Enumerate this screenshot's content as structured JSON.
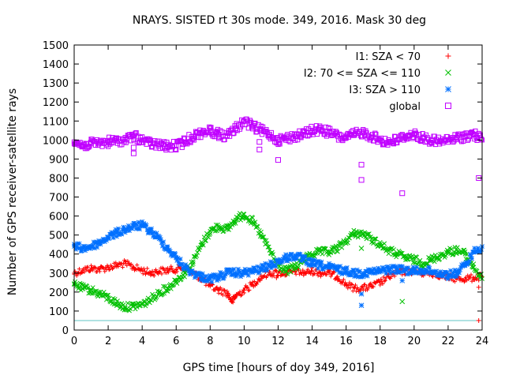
{
  "chart_data": {
    "type": "scatter",
    "title": "NRAYS. SISTED rt 30s mode. 349, 2016. Mask 30 deg",
    "xlabel": "GPS time [hours of doy 349, 2016]",
    "ylabel": "Number of GPS receiver-satellite rays",
    "xlim": [
      0,
      24
    ],
    "ylim": [
      0,
      1500
    ],
    "x_ticks": [
      0,
      2,
      4,
      6,
      8,
      10,
      12,
      14,
      16,
      18,
      20,
      22,
      24
    ],
    "y_ticks": [
      0,
      100,
      200,
      300,
      400,
      500,
      600,
      700,
      800,
      900,
      1000,
      1100,
      1200,
      1300,
      1400,
      1500
    ],
    "reference_line": {
      "y": 50,
      "color": "#5fc4c4"
    },
    "legend_position": "top-right",
    "series": [
      {
        "name": "I1: SZA < 70",
        "marker": "+",
        "color": "#ff0000",
        "x": [
          0,
          0.5,
          1,
          1.5,
          2,
          2.5,
          3,
          3.5,
          4,
          4.5,
          5,
          5.5,
          6,
          6.5,
          7,
          7.5,
          8,
          8.5,
          9,
          9.3,
          9.5,
          10,
          10.5,
          11,
          11.5,
          12,
          12.5,
          13,
          13.5,
          14,
          14.5,
          15,
          15.5,
          16,
          16.5,
          17,
          17.5,
          18,
          18.5,
          19,
          19.5,
          20,
          20.5,
          21,
          21.5,
          22,
          22.5,
          23,
          23.5,
          24
        ],
        "y": [
          300,
          315,
          325,
          320,
          330,
          340,
          350,
          330,
          315,
          300,
          310,
          315,
          320,
          330,
          300,
          270,
          230,
          210,
          195,
          150,
          180,
          210,
          240,
          280,
          300,
          300,
          300,
          310,
          300,
          310,
          300,
          300,
          280,
          240,
          220,
          220,
          230,
          250,
          280,
          300,
          310,
          310,
          300,
          300,
          290,
          280,
          270,
          270,
          275,
          280
        ]
      },
      {
        "name": "I2: 70 <= SZA <= 110",
        "marker": "x",
        "color": "#00c000",
        "x": [
          0,
          0.5,
          1,
          1.5,
          2,
          2.5,
          3,
          3.5,
          4,
          4.5,
          5,
          5.5,
          6,
          6.5,
          7,
          7.5,
          8,
          8.5,
          9,
          9.5,
          10,
          10.5,
          11,
          11.5,
          12,
          12.5,
          13,
          13.5,
          14,
          14.5,
          15,
          15.5,
          16,
          16.5,
          17,
          17.5,
          18,
          18.5,
          19,
          19.5,
          20,
          20.5,
          21,
          21.5,
          22,
          22.5,
          23,
          23.5,
          24
        ],
        "y": [
          240,
          220,
          210,
          190,
          170,
          140,
          120,
          125,
          135,
          160,
          200,
          220,
          260,
          300,
          360,
          450,
          520,
          545,
          530,
          580,
          610,
          570,
          500,
          420,
          340,
          310,
          330,
          370,
          400,
          410,
          410,
          430,
          470,
          510,
          505,
          480,
          450,
          420,
          400,
          380,
          370,
          350,
          370,
          390,
          410,
          420,
          400,
          330,
          270
        ]
      },
      {
        "name": "I3: SZA > 110",
        "marker": "*",
        "color": "#0070ff",
        "x": [
          0,
          0.5,
          1,
          1.5,
          2,
          2.5,
          3,
          3.5,
          4,
          4.5,
          5,
          5.5,
          6,
          6.5,
          7,
          7.5,
          8,
          8.5,
          9,
          9.5,
          10,
          10.5,
          11,
          11.5,
          12,
          12.5,
          13,
          13.5,
          14,
          14.5,
          15,
          15.5,
          16,
          16.5,
          17,
          17.5,
          18,
          18.5,
          19,
          19.5,
          20,
          20.5,
          21,
          21.5,
          22,
          22.5,
          23,
          23.5,
          24
        ],
        "y": [
          440,
          430,
          440,
          460,
          490,
          510,
          530,
          545,
          550,
          520,
          480,
          430,
          380,
          330,
          300,
          280,
          270,
          280,
          300,
          300,
          300,
          310,
          320,
          340,
          360,
          380,
          390,
          370,
          350,
          340,
          330,
          320,
          310,
          300,
          300,
          305,
          310,
          320,
          320,
          315,
          310,
          315,
          310,
          300,
          290,
          300,
          340,
          410,
          440
        ]
      },
      {
        "name": "global",
        "marker": "square",
        "color": "#c000ff",
        "x": [
          0,
          0.5,
          1,
          1.5,
          2,
          2.5,
          3,
          3.5,
          4,
          4.5,
          5,
          5.5,
          6,
          6.5,
          7,
          7.5,
          8,
          8.5,
          9,
          9.5,
          10,
          10.5,
          11,
          11.5,
          12,
          12.5,
          13,
          13.5,
          14,
          14.5,
          15,
          15.5,
          16,
          16.5,
          17,
          17.5,
          18,
          18.5,
          19,
          19.5,
          20,
          20.5,
          21,
          21.5,
          22,
          22.5,
          23,
          23.5,
          24
        ],
        "y": [
          990,
          970,
          980,
          985,
          990,
          995,
          1000,
          1020,
          1000,
          980,
          975,
          965,
          970,
          990,
          1020,
          1040,
          1050,
          1030,
          1020,
          1060,
          1100,
          1070,
          1050,
          1030,
          1000,
          1010,
          1020,
          1030,
          1050,
          1055,
          1040,
          1020,
          1010,
          1030,
          1040,
          1020,
          1000,
          990,
          1000,
          1020,
          1030,
          1010,
          1000,
          990,
          1000,
          1010,
          1020,
          1030,
          1000
        ]
      }
    ],
    "outliers": [
      {
        "series": "global",
        "x": 16.9,
        "y": 870
      },
      {
        "series": "global",
        "x": 16.9,
        "y": 790
      },
      {
        "series": "global",
        "x": 19.3,
        "y": 720
      },
      {
        "series": "global",
        "x": 23.8,
        "y": 800
      },
      {
        "series": "global",
        "x": 12.0,
        "y": 895
      },
      {
        "series": "global",
        "x": 3.5,
        "y": 930
      },
      {
        "series": "global",
        "x": 3.5,
        "y": 960
      },
      {
        "series": "global",
        "x": 10.9,
        "y": 950
      },
      {
        "series": "global",
        "x": 10.9,
        "y": 990
      },
      {
        "series": "I2: 70 <= SZA <= 110",
        "x": 19.3,
        "y": 150
      },
      {
        "series": "I2: 70 <= SZA <= 110",
        "x": 16.9,
        "y": 430
      },
      {
        "series": "I3: SZA > 110",
        "x": 16.9,
        "y": 130
      },
      {
        "series": "I3: SZA > 110",
        "x": 16.9,
        "y": 190
      },
      {
        "series": "I3: SZA > 110",
        "x": 19.3,
        "y": 260
      },
      {
        "series": "I1: SZA < 70",
        "x": 23.8,
        "y": 225
      },
      {
        "series": "I1: SZA < 70",
        "x": 23.8,
        "y": 50
      },
      {
        "series": "I1: SZA < 70",
        "x": 11.9,
        "y": 275
      }
    ]
  }
}
